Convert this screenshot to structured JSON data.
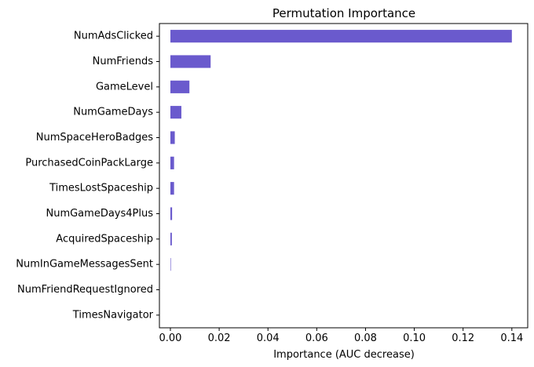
{
  "chart_data": {
    "type": "bar",
    "orientation": "horizontal",
    "title": "Permutation Importance",
    "xlabel": "Importance (AUC decrease)",
    "ylabel": "",
    "categories": [
      "NumAdsClicked",
      "NumFriends",
      "GameLevel",
      "NumGameDays",
      "NumSpaceHeroBadges",
      "PurchasedCoinPackLarge",
      "TimesLostSpaceship",
      "NumGameDays4Plus",
      "AcquiredSpaceship",
      "NumInGameMessagesSent",
      "NumFriendRequestIgnored",
      "TimesNavigator"
    ],
    "values": [
      0.14,
      0.0165,
      0.0078,
      0.0045,
      0.0018,
      0.0015,
      0.0015,
      0.0007,
      0.0006,
      0.0002,
      0.0,
      0.0
    ],
    "xlim": [
      -0.0045,
      0.1465
    ],
    "xticks": [
      0.0,
      0.02,
      0.04,
      0.06,
      0.08,
      0.1,
      0.12,
      0.14
    ],
    "xtick_labels": [
      "0.00",
      "0.02",
      "0.04",
      "0.06",
      "0.08",
      "0.10",
      "0.12",
      "0.14"
    ],
    "bar_color": "#6a5acd",
    "grid": false,
    "legend": "none"
  }
}
